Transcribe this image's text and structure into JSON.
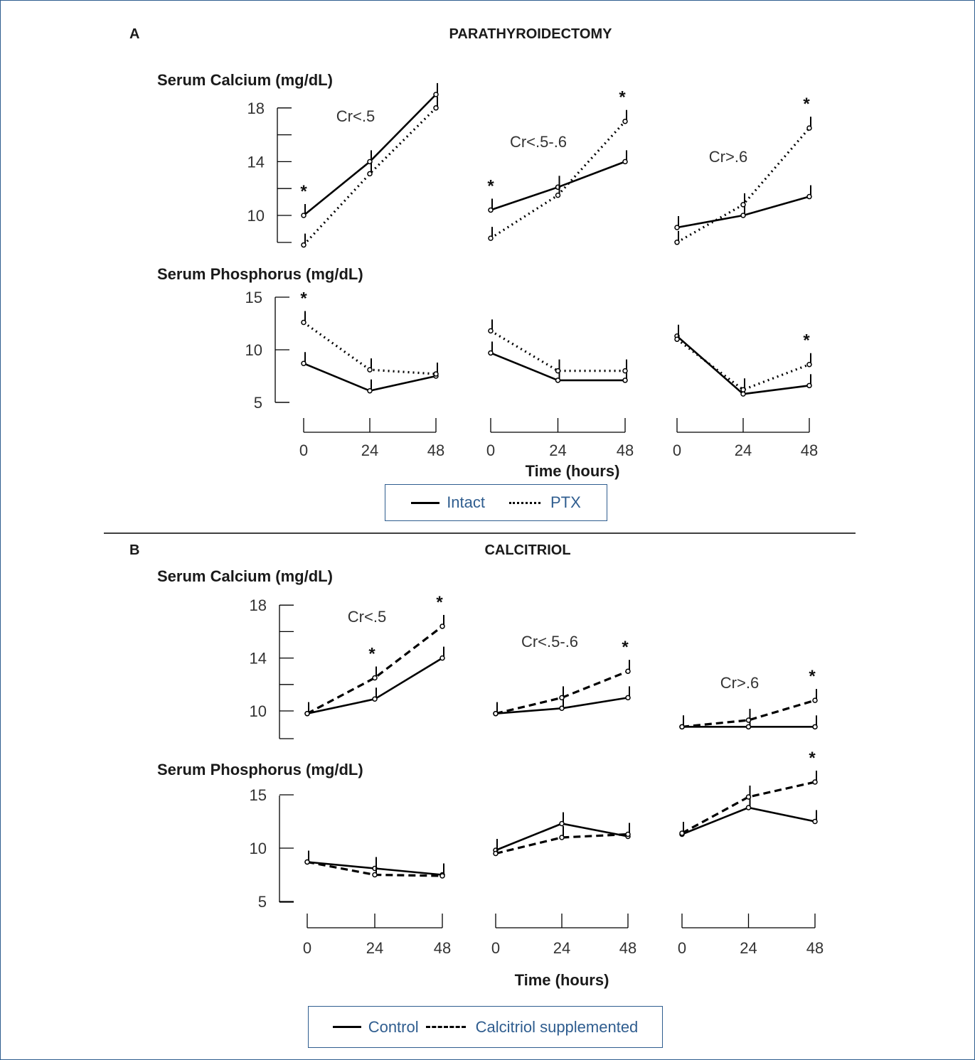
{
  "panel_a": {
    "letter": "A",
    "title": "PARATHYROIDECTOMY",
    "calcium_label": "Serum Calcium (mg/dL)",
    "phosphorus_label": "Serum Phosphorus (mg/dL)",
    "xlabel": "Time (hours)",
    "legend": {
      "solid": "Intact",
      "dotted": "PTX"
    }
  },
  "panel_b": {
    "letter": "B",
    "title": "CALCITRIOL",
    "calcium_label": "Serum Calcium (mg/dL)",
    "phosphorus_label": "Serum Phosphorus (mg/dL)",
    "xlabel": "Time (hours)",
    "legend": {
      "solid": "Control",
      "dashed": "Calcitriol supplemented"
    }
  },
  "colors": {
    "frame": "#2f5d8f",
    "legend_text": "#2f5d8f",
    "lines": "#000000"
  },
  "chart_data": [
    {
      "type": "line",
      "panel": "A",
      "measure": "Serum Calcium (mg/dL)",
      "group": "Cr<.5",
      "x": [
        0,
        24,
        48
      ],
      "ylim": [
        8,
        18
      ],
      "yticks": [
        10,
        14,
        18
      ],
      "series": [
        {
          "name": "Intact",
          "style": "solid",
          "values": [
            10,
            14,
            19
          ]
        },
        {
          "name": "PTX",
          "style": "dotted",
          "values": [
            7.8,
            13.1,
            18
          ]
        }
      ],
      "significant_x": [
        0
      ]
    },
    {
      "type": "line",
      "panel": "A",
      "measure": "Serum Calcium (mg/dL)",
      "group": "Cr<.5-.6",
      "x": [
        0,
        24,
        48
      ],
      "ylim": [
        8,
        18
      ],
      "yticks": [
        10,
        14,
        18
      ],
      "series": [
        {
          "name": "Intact",
          "style": "solid",
          "values": [
            10.4,
            12.1,
            14
          ]
        },
        {
          "name": "PTX",
          "style": "dotted",
          "values": [
            8.3,
            11.5,
            17
          ]
        }
      ],
      "significant_x": [
        0,
        48
      ]
    },
    {
      "type": "line",
      "panel": "A",
      "measure": "Serum Calcium (mg/dL)",
      "group": "Cr>.6",
      "x": [
        0,
        24,
        48
      ],
      "ylim": [
        8,
        18
      ],
      "yticks": [
        10,
        14,
        18
      ],
      "series": [
        {
          "name": "Intact",
          "style": "solid",
          "values": [
            9.1,
            10,
            11.4
          ]
        },
        {
          "name": "PTX",
          "style": "dotted",
          "values": [
            8,
            10.8,
            16.5
          ]
        }
      ],
      "significant_x": [
        48
      ]
    },
    {
      "type": "line",
      "panel": "A",
      "measure": "Serum Phosphorus (mg/dL)",
      "group": "Cr<.5",
      "x": [
        0,
        24,
        48
      ],
      "ylim": [
        5,
        15
      ],
      "yticks": [
        5,
        10,
        15
      ],
      "series": [
        {
          "name": "Intact",
          "style": "solid",
          "values": [
            8.7,
            6.1,
            7.5
          ]
        },
        {
          "name": "PTX",
          "style": "dotted",
          "values": [
            12.6,
            8.1,
            7.7
          ]
        }
      ],
      "significant_x": [
        0
      ]
    },
    {
      "type": "line",
      "panel": "A",
      "measure": "Serum Phosphorus (mg/dL)",
      "group": "Cr<.5-.6",
      "x": [
        0,
        24,
        48
      ],
      "ylim": [
        5,
        15
      ],
      "yticks": [
        5,
        10,
        15
      ],
      "series": [
        {
          "name": "Intact",
          "style": "solid",
          "values": [
            9.7,
            7.1,
            7.1
          ]
        },
        {
          "name": "PTX",
          "style": "dotted",
          "values": [
            11.8,
            8,
            8
          ]
        }
      ],
      "significant_x": []
    },
    {
      "type": "line",
      "panel": "A",
      "measure": "Serum Phosphorus (mg/dL)",
      "group": "Cr>.6",
      "x": [
        0,
        24,
        48
      ],
      "ylim": [
        5,
        15
      ],
      "yticks": [
        5,
        10,
        15
      ],
      "series": [
        {
          "name": "Intact",
          "style": "solid",
          "values": [
            11.3,
            5.8,
            6.6
          ]
        },
        {
          "name": "PTX",
          "style": "dotted",
          "values": [
            11,
            6.2,
            8.6
          ]
        }
      ],
      "significant_x": [
        48
      ]
    },
    {
      "type": "line",
      "panel": "B",
      "measure": "Serum Calcium (mg/dL)",
      "group": "Cr<.5",
      "x": [
        0,
        24,
        48
      ],
      "ylim": [
        8,
        18
      ],
      "yticks": [
        10,
        14,
        18
      ],
      "series": [
        {
          "name": "Control",
          "style": "solid",
          "values": [
            9.8,
            10.9,
            14
          ]
        },
        {
          "name": "Calcitriol supplemented",
          "style": "dashed",
          "values": [
            9.8,
            12.5,
            16.4
          ]
        }
      ],
      "significant_x": [
        24,
        48
      ]
    },
    {
      "type": "line",
      "panel": "B",
      "measure": "Serum Calcium (mg/dL)",
      "group": "Cr<.5-.6",
      "x": [
        0,
        24,
        48
      ],
      "ylim": [
        8,
        18
      ],
      "yticks": [
        10,
        14,
        18
      ],
      "series": [
        {
          "name": "Control",
          "style": "solid",
          "values": [
            9.8,
            10.2,
            11
          ]
        },
        {
          "name": "Calcitriol supplemented",
          "style": "dashed",
          "values": [
            9.8,
            11,
            13
          ]
        }
      ],
      "significant_x": [
        48
      ]
    },
    {
      "type": "line",
      "panel": "B",
      "measure": "Serum Calcium (mg/dL)",
      "group": "Cr>.6",
      "x": [
        0,
        24,
        48
      ],
      "ylim": [
        8,
        18
      ],
      "yticks": [
        10,
        14,
        18
      ],
      "series": [
        {
          "name": "Control",
          "style": "solid",
          "values": [
            8.8,
            8.8,
            8.8
          ]
        },
        {
          "name": "Calcitriol supplemented",
          "style": "dashed",
          "values": [
            8.8,
            9.3,
            10.8
          ]
        }
      ],
      "significant_x": [
        48
      ]
    },
    {
      "type": "line",
      "panel": "B",
      "measure": "Serum Phosphorus (mg/dL)",
      "group": "Cr<.5",
      "x": [
        0,
        24,
        48
      ],
      "ylim": [
        5,
        15
      ],
      "yticks": [
        5,
        10,
        15
      ],
      "series": [
        {
          "name": "Control",
          "style": "solid",
          "values": [
            8.7,
            8.1,
            7.5
          ]
        },
        {
          "name": "Calcitriol supplemented",
          "style": "dashed",
          "values": [
            8.7,
            7.5,
            7.4
          ]
        }
      ],
      "significant_x": []
    },
    {
      "type": "line",
      "panel": "B",
      "measure": "Serum Phosphorus (mg/dL)",
      "group": "Cr<.5-.6",
      "x": [
        0,
        24,
        48
      ],
      "ylim": [
        5,
        15
      ],
      "yticks": [
        5,
        10,
        15
      ],
      "series": [
        {
          "name": "Control",
          "style": "solid",
          "values": [
            9.8,
            12.3,
            11.1
          ]
        },
        {
          "name": "Calcitriol supplemented",
          "style": "dashed",
          "values": [
            9.5,
            11,
            11.3
          ]
        }
      ],
      "significant_x": []
    },
    {
      "type": "line",
      "panel": "B",
      "measure": "Serum Phosphorus (mg/dL)",
      "group": "Cr>.6",
      "x": [
        0,
        24,
        48
      ],
      "ylim": [
        5,
        15
      ],
      "yticks": [
        5,
        10,
        15
      ],
      "series": [
        {
          "name": "Control",
          "style": "solid",
          "values": [
            11.3,
            13.8,
            12.5
          ]
        },
        {
          "name": "Calcitriol supplemented",
          "style": "dashed",
          "values": [
            11.4,
            14.8,
            16.2
          ]
        }
      ],
      "significant_x": [
        48
      ]
    }
  ]
}
